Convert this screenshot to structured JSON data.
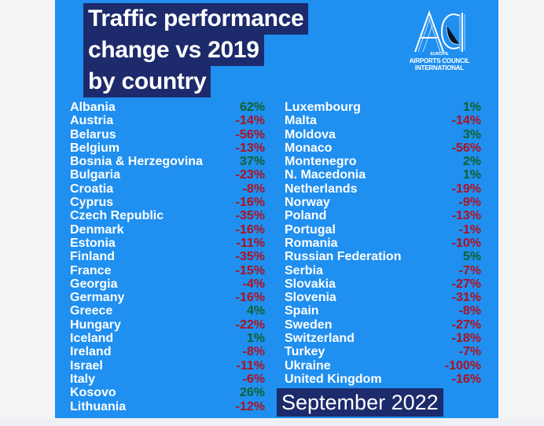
{
  "title_lines": [
    "Traffic performance",
    "change vs 2019",
    "by country"
  ],
  "logo": {
    "mark": "ACI",
    "sub": "EUROPE",
    "org_line1": "AIRPORTS COUNCIL",
    "org_line2": "INTERNATIONAL"
  },
  "date_label": "September 2022",
  "colors": {
    "background": "#1f8ff0",
    "title_bg": "#1d2a6b",
    "positive": "#10622a",
    "negative": "#b0101e"
  },
  "left_column": [
    {
      "country": "Albania",
      "change": "62%",
      "sign": "pos"
    },
    {
      "country": "Austria",
      "change": "-14%",
      "sign": "neg"
    },
    {
      "country": "Belarus",
      "change": "-56%",
      "sign": "neg"
    },
    {
      "country": "Belgium",
      "change": "-13%",
      "sign": "neg"
    },
    {
      "country": "Bosnia & Herzegovina",
      "change": "37%",
      "sign": "pos"
    },
    {
      "country": "Bulgaria",
      "change": "-23%",
      "sign": "neg"
    },
    {
      "country": "Croatia",
      "change": "-8%",
      "sign": "neg"
    },
    {
      "country": "Cyprus",
      "change": "-16%",
      "sign": "neg"
    },
    {
      "country": "Czech Republic",
      "change": "-35%",
      "sign": "neg"
    },
    {
      "country": "Denmark",
      "change": "-16%",
      "sign": "neg"
    },
    {
      "country": "Estonia",
      "change": "-11%",
      "sign": "neg"
    },
    {
      "country": "Finland",
      "change": "-35%",
      "sign": "neg"
    },
    {
      "country": "France",
      "change": "-15%",
      "sign": "neg"
    },
    {
      "country": "Georgia",
      "change": "-4%",
      "sign": "neg"
    },
    {
      "country": "Germany",
      "change": "-16%",
      "sign": "neg"
    },
    {
      "country": "Greece",
      "change": "4%",
      "sign": "pos"
    },
    {
      "country": "Hungary",
      "change": "-22%",
      "sign": "neg"
    },
    {
      "country": "Iceland",
      "change": "1%",
      "sign": "pos"
    },
    {
      "country": "Ireland",
      "change": "-8%",
      "sign": "neg"
    },
    {
      "country": "Israel",
      "change": "-11%",
      "sign": "neg"
    },
    {
      "country": "Italy",
      "change": "-6%",
      "sign": "neg"
    },
    {
      "country": "Kosovo",
      "change": "26%",
      "sign": "pos"
    },
    {
      "country": "Lithuania",
      "change": "-12%",
      "sign": "neg"
    }
  ],
  "right_column": [
    {
      "country": "Luxembourg",
      "change": "1%",
      "sign": "pos"
    },
    {
      "country": "Malta",
      "change": "-14%",
      "sign": "neg"
    },
    {
      "country": "Moldova",
      "change": "3%",
      "sign": "pos"
    },
    {
      "country": "Monaco",
      "change": "-56%",
      "sign": "neg"
    },
    {
      "country": "Montenegro",
      "change": "2%",
      "sign": "pos"
    },
    {
      "country": "N. Macedonia",
      "change": "1%",
      "sign": "pos"
    },
    {
      "country": "Netherlands",
      "change": "-19%",
      "sign": "neg"
    },
    {
      "country": "Norway",
      "change": "-9%",
      "sign": "neg"
    },
    {
      "country": "Poland",
      "change": "-13%",
      "sign": "neg"
    },
    {
      "country": "Portugal",
      "change": "-1%",
      "sign": "neg"
    },
    {
      "country": "Romania",
      "change": "-10%",
      "sign": "neg"
    },
    {
      "country": "Russian Federation",
      "change": "5%",
      "sign": "pos"
    },
    {
      "country": "Serbia",
      "change": "-7%",
      "sign": "neg"
    },
    {
      "country": "Slovakia",
      "change": "-27%",
      "sign": "neg"
    },
    {
      "country": "Slovenia",
      "change": "-31%",
      "sign": "neg"
    },
    {
      "country": "Spain",
      "change": "-8%",
      "sign": "neg"
    },
    {
      "country": "Sweden",
      "change": "-27%",
      "sign": "neg"
    },
    {
      "country": "Switzerland",
      "change": "-18%",
      "sign": "neg"
    },
    {
      "country": "Turkey",
      "change": "-7%",
      "sign": "neg"
    },
    {
      "country": "Ukraine",
      "change": "-100%",
      "sign": "neg"
    },
    {
      "country": "United Kingdom",
      "change": "-16%",
      "sign": "neg"
    }
  ]
}
